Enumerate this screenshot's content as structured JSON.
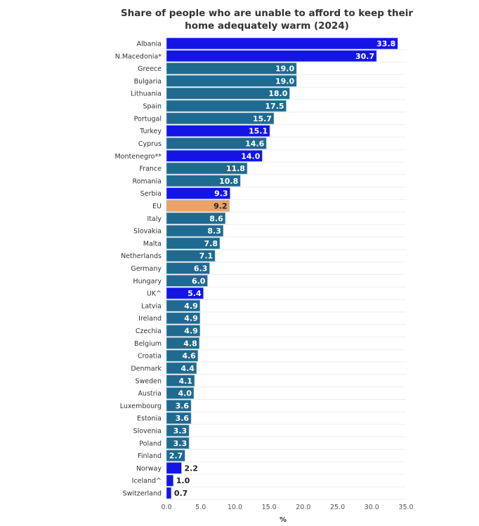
{
  "chart_data": {
    "type": "bar",
    "orientation": "horizontal",
    "title": "Share of people who are unable to afford to keep their home adequately warm (2024)",
    "xlabel": "%",
    "ylabel": "",
    "xlim": [
      0,
      35
    ],
    "xticks": [
      "0.0",
      "5.0",
      "10.0",
      "15.0",
      "20.0",
      "25.0",
      "30.0",
      "35.0"
    ],
    "grid": true,
    "legend": "none",
    "colors": {
      "eu_member": "#1f6a8f",
      "non_eu": "#1414e6",
      "eu_average": "#eba366"
    },
    "categories": [
      "Albania",
      "N.Macedonia*",
      "Greece",
      "Bulgaria",
      "Lithuania",
      "Spain",
      "Portugal",
      "Turkey",
      "Cyprus",
      "Montenegro**",
      "France",
      "Romania",
      "Serbia",
      "EU",
      "Italy",
      "Slovakia",
      "Malta",
      "Netherlands",
      "Germany",
      "Hungary",
      "UK^",
      "Latvia",
      "Ireland",
      "Czechia",
      "Belgium",
      "Croatia",
      "Denmark",
      "Sweden",
      "Austria",
      "Luxembourg",
      "Estonia",
      "Slovenia",
      "Poland",
      "Finland",
      "Norway",
      "Iceland^",
      "Switzerland"
    ],
    "values": [
      33.8,
      30.7,
      19.0,
      19.0,
      18.0,
      17.5,
      15.7,
      15.1,
      14.6,
      14.0,
      11.8,
      10.8,
      9.3,
      9.2,
      8.6,
      8.3,
      7.8,
      7.1,
      6.3,
      6.0,
      5.4,
      4.9,
      4.9,
      4.9,
      4.8,
      4.6,
      4.4,
      4.1,
      4.0,
      3.6,
      3.6,
      3.3,
      3.3,
      2.7,
      2.2,
      1.0,
      0.7
    ],
    "groups": [
      "non_eu",
      "non_eu",
      "eu_member",
      "eu_member",
      "eu_member",
      "eu_member",
      "eu_member",
      "non_eu",
      "eu_member",
      "non_eu",
      "eu_member",
      "eu_member",
      "non_eu",
      "eu_average",
      "eu_member",
      "eu_member",
      "eu_member",
      "eu_member",
      "eu_member",
      "eu_member",
      "non_eu",
      "eu_member",
      "eu_member",
      "eu_member",
      "eu_member",
      "eu_member",
      "eu_member",
      "eu_member",
      "eu_member",
      "eu_member",
      "eu_member",
      "eu_member",
      "eu_member",
      "eu_member",
      "non_eu",
      "non_eu",
      "non_eu"
    ]
  }
}
